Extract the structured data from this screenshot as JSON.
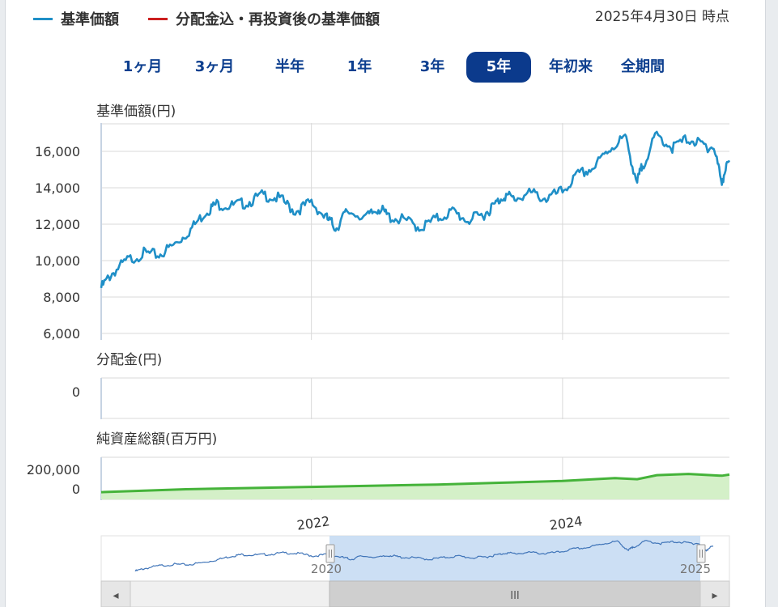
{
  "legend": [
    {
      "label": "基準価額",
      "color": "#1f8fc7"
    },
    {
      "label": "分配金込・再投資後の基準価額",
      "color": "#cc1f1f"
    }
  ],
  "as_of": "2025年4月30日 時点",
  "range_buttons": [
    {
      "label": "1ヶ月",
      "active": false
    },
    {
      "label": "3ヶ月",
      "active": false
    },
    {
      "label": "半年",
      "active": false
    },
    {
      "label": "1年",
      "active": false
    },
    {
      "label": "3年",
      "active": false
    },
    {
      "label": "5年",
      "active": true
    },
    {
      "label": "年初来",
      "active": false
    },
    {
      "label": "全期間",
      "active": false
    }
  ],
  "colors": {
    "nav_line": "#1f8fc7",
    "assets_line": "#45b33a",
    "assets_fill": "#d4f0c8",
    "grid": "#d9d9d9",
    "navigator_band": "#c7dcf3"
  },
  "chart_data": [
    {
      "type": "line",
      "title": "基準価額(円)",
      "x_range": [
        "2020-04-30",
        "2025-04-30"
      ],
      "ylim": [
        6000,
        17000
      ],
      "yticks": [
        "6,000",
        "8,000",
        "10,000",
        "12,000",
        "14,000",
        "16,000"
      ],
      "xticks": [
        "2022",
        "2024"
      ],
      "series": [
        {
          "name": "基準価額",
          "x": [
            "2020-04-30",
            "2020-06-01",
            "2020-07-15",
            "2020-09-01",
            "2020-10-15",
            "2020-12-01",
            "2021-01-15",
            "2021-03-01",
            "2021-04-01",
            "2021-05-15",
            "2021-07-01",
            "2021-08-15",
            "2021-10-01",
            "2021-11-15",
            "2022-01-01",
            "2022-02-15",
            "2022-03-15",
            "2022-04-15",
            "2022-06-15",
            "2022-07-15",
            "2022-08-15",
            "2022-10-01",
            "2022-11-15",
            "2023-01-01",
            "2023-02-15",
            "2023-04-01",
            "2023-05-15",
            "2023-06-15",
            "2023-07-15",
            "2023-08-15",
            "2023-10-01",
            "2023-11-15",
            "2024-01-01",
            "2024-02-15",
            "2024-04-01",
            "2024-05-15",
            "2024-07-01",
            "2024-08-05",
            "2024-08-20",
            "2024-10-01",
            "2024-11-15",
            "2025-01-01",
            "2025-02-15",
            "2025-03-15",
            "2025-04-08",
            "2025-04-30"
          ],
          "values": [
            8500,
            9300,
            10000,
            10400,
            10300,
            10900,
            11700,
            12700,
            13100,
            13000,
            13200,
            13600,
            13400,
            12700,
            13200,
            12300,
            11800,
            12700,
            12400,
            12900,
            12400,
            12200,
            11800,
            12300,
            12700,
            12200,
            12500,
            13000,
            13600,
            13400,
            13700,
            13400,
            13800,
            14700,
            15100,
            16100,
            16800,
            14300,
            15200,
            16900,
            16200,
            16700,
            16300,
            16200,
            14400,
            15500
          ]
        }
      ]
    },
    {
      "type": "line",
      "title": "分配金(円)",
      "yticks": [
        "0"
      ],
      "series": [
        {
          "x": [],
          "values": []
        }
      ]
    },
    {
      "type": "area",
      "title": "純資産総額(百万円)",
      "ylim": [
        0,
        400000
      ],
      "yticks": [
        "0",
        "200,000"
      ],
      "series": [
        {
          "x": [
            "2020-04-30",
            "2021-01-01",
            "2022-01-01",
            "2023-01-01",
            "2023-07-01",
            "2024-01-01",
            "2024-06-01",
            "2024-08-05",
            "2024-10-01",
            "2025-01-01",
            "2025-04-08",
            "2025-04-30"
          ],
          "values": [
            20000,
            45000,
            65000,
            85000,
            100000,
            115000,
            140000,
            130000,
            165000,
            175000,
            160000,
            170000
          ]
        }
      ]
    }
  ],
  "navigator": {
    "labels": [
      "2020",
      "2025"
    ],
    "selected": [
      "2020-04-30",
      "2025-04-30"
    ],
    "scrollbar_grip": "III",
    "left_arrow": "◂",
    "right_arrow": "▸"
  }
}
